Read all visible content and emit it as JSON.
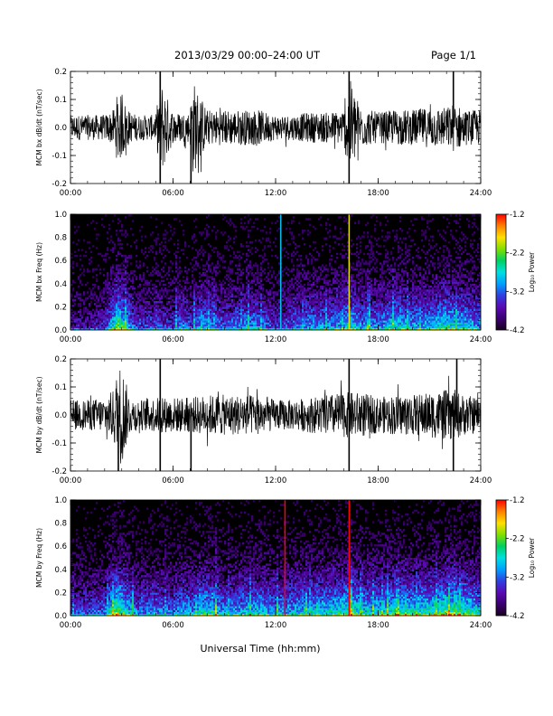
{
  "header": {
    "title": "2013/03/29  00:00–24:00 UT",
    "page": "Page 1/1"
  },
  "colors": {
    "background": "#ffffff",
    "trace": "#000000",
    "spectrogram_background": "#000000",
    "colormap": [
      "#1a001e",
      "#3a0070",
      "#5a0ab4",
      "#3040e0",
      "#00a0ff",
      "#00e0e0",
      "#00d060",
      "#80e000",
      "#ffe000",
      "#ff8000",
      "#ff0000"
    ]
  },
  "chart_data": [
    {
      "type": "line",
      "panel": "bx-dbdt",
      "ylabel": "MCM bx dB/dt (nT/sec)",
      "ylim": [
        -0.2,
        0.2
      ],
      "yticks": [
        "0.2",
        "0.1",
        "0.0",
        "-0.1",
        "-0.2"
      ],
      "xlim": [
        0,
        24
      ],
      "xticks": [
        "00:00",
        "06:00",
        "12:00",
        "18:00",
        "24:00"
      ],
      "grid": false,
      "series": [
        {
          "x": [
            0,
            1,
            2,
            2.5,
            2.8,
            3,
            3.2,
            3.5,
            4,
            5,
            5.25,
            6,
            7,
            7.1,
            8,
            9,
            10,
            11,
            12,
            13,
            14,
            15,
            16,
            16.3,
            17,
            18,
            19,
            20,
            21,
            22,
            22.5,
            23,
            24
          ],
          "amplitude": [
            0.05,
            0.05,
            0.05,
            0.07,
            0.15,
            0.12,
            0.1,
            0.06,
            0.05,
            0.05,
            0.2,
            0.06,
            0.06,
            0.2,
            0.07,
            0.07,
            0.07,
            0.07,
            0.05,
            0.05,
            0.06,
            0.06,
            0.07,
            0.2,
            0.08,
            0.06,
            0.07,
            0.07,
            0.08,
            0.08,
            0.1,
            0.07,
            0.07
          ]
        }
      ],
      "spikes": [
        {
          "x": 5.25,
          "dir": "down"
        },
        {
          "x": 5.25,
          "dir": "up"
        },
        {
          "x": 7.05,
          "dir": "down"
        },
        {
          "x": 16.3,
          "dir": "up"
        },
        {
          "x": 16.3,
          "dir": "down"
        },
        {
          "x": 22.4,
          "dir": "up"
        }
      ]
    },
    {
      "type": "heatmap",
      "panel": "bx-spectrogram",
      "ylabel": "MCM bx Freq (Hz)",
      "ylim": [
        0.0,
        1.0
      ],
      "yticks": [
        "1.0",
        "0.8",
        "0.6",
        "0.4",
        "0.2",
        "0.0"
      ],
      "xlim": [
        0,
        24
      ],
      "xticks": [
        "00:00",
        "06:00",
        "12:00",
        "18:00",
        "24:00"
      ],
      "colorbar": {
        "label": "Log₁₀ Power",
        "ticks": [
          "-1.2",
          "-2.2",
          "-3.2",
          "-4.2"
        ],
        "range": [
          -4.2,
          -1.2
        ]
      },
      "activity": {
        "x": [
          0,
          1,
          2,
          2.8,
          3.2,
          4,
          5,
          6,
          6.5,
          7,
          8,
          9,
          10,
          11,
          12,
          13,
          14,
          15,
          16,
          16.3,
          17,
          18,
          19,
          20,
          21,
          22,
          23,
          24
        ],
        "level": [
          0.25,
          0.2,
          0.3,
          0.75,
          0.55,
          0.3,
          0.35,
          0.3,
          0.45,
          0.35,
          0.5,
          0.35,
          0.45,
          0.45,
          0.3,
          0.4,
          0.45,
          0.45,
          0.5,
          0.6,
          0.45,
          0.45,
          0.55,
          0.5,
          0.5,
          0.6,
          0.55,
          0.45
        ]
      },
      "lines": [
        {
          "x": 16.3,
          "level": 0.78
        },
        {
          "x": 12.3,
          "level": 0.0
        }
      ]
    },
    {
      "type": "line",
      "panel": "by-dbdt",
      "ylabel": "MCM by dB/dt (nT/sec)",
      "ylim": [
        -0.2,
        0.2
      ],
      "yticks": [
        "0.2",
        "0.1",
        "0.0",
        "-0.1",
        "-0.2"
      ],
      "xlim": [
        0,
        24
      ],
      "xticks": [
        "00:00",
        "06:00",
        "12:00",
        "18:00",
        "24:00"
      ],
      "grid": false,
      "series": [
        {
          "x": [
            0,
            1,
            2,
            2.5,
            2.8,
            3,
            3.2,
            3.5,
            4,
            5,
            6,
            7,
            8,
            9,
            10,
            11,
            12,
            13,
            14,
            15,
            16,
            17,
            18,
            19,
            20,
            21,
            22,
            22.5,
            23,
            24
          ],
          "amplitude": [
            0.06,
            0.06,
            0.07,
            0.1,
            0.2,
            0.2,
            0.14,
            0.07,
            0.06,
            0.07,
            0.07,
            0.07,
            0.08,
            0.08,
            0.08,
            0.08,
            0.06,
            0.06,
            0.07,
            0.08,
            0.09,
            0.09,
            0.07,
            0.08,
            0.08,
            0.09,
            0.1,
            0.1,
            0.08,
            0.07
          ]
        }
      ],
      "spikes": [
        {
          "x": 5.25,
          "dir": "down"
        },
        {
          "x": 5.25,
          "dir": "up"
        },
        {
          "x": 7.05,
          "dir": "down"
        },
        {
          "x": 16.3,
          "dir": "up"
        },
        {
          "x": 16.3,
          "dir": "down"
        },
        {
          "x": 22.4,
          "dir": "down"
        },
        {
          "x": 22.6,
          "dir": "up"
        },
        {
          "x": 2.8,
          "dir": "down"
        }
      ]
    },
    {
      "type": "heatmap",
      "panel": "by-spectrogram",
      "ylabel": "MCM by Freq (Hz)",
      "ylim": [
        0.0,
        1.0
      ],
      "yticks": [
        "1.0",
        "0.8",
        "0.6",
        "0.4",
        "0.2",
        "0.0"
      ],
      "xlim": [
        0,
        24
      ],
      "xticks": [
        "00:00",
        "06:00",
        "12:00",
        "18:00",
        "24:00"
      ],
      "colorbar": {
        "label": "Log₁₀ Power",
        "ticks": [
          "-1.2",
          "-2.2",
          "-3.2",
          "-4.2"
        ],
        "range": [
          -4.2,
          -1.2
        ]
      },
      "activity": {
        "x": [
          0,
          1,
          2,
          2.8,
          3.2,
          4,
          5,
          6,
          6.5,
          7,
          8,
          9,
          10,
          11,
          12,
          13,
          14,
          15,
          16,
          16.3,
          17,
          18,
          19,
          20,
          21,
          22,
          23,
          24
        ],
        "level": [
          0.35,
          0.35,
          0.4,
          0.8,
          0.6,
          0.4,
          0.45,
          0.4,
          0.5,
          0.45,
          0.6,
          0.45,
          0.5,
          0.55,
          0.45,
          0.5,
          0.55,
          0.55,
          0.6,
          0.7,
          0.55,
          0.55,
          0.6,
          0.6,
          0.6,
          0.7,
          0.65,
          0.55
        ]
      },
      "lines": [
        {
          "x": 12.55,
          "level": 1.0
        },
        {
          "x": 16.3,
          "level": 1.0
        }
      ]
    }
  ],
  "footer": {
    "xlabel": "Universal Time (hh:mm)"
  }
}
